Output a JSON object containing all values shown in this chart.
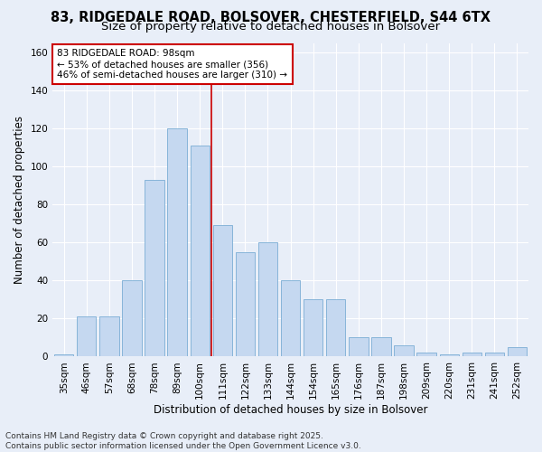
{
  "title_line1": "83, RIDGEDALE ROAD, BOLSOVER, CHESTERFIELD, S44 6TX",
  "title_line2": "Size of property relative to detached houses in Bolsover",
  "xlabel": "Distribution of detached houses by size in Bolsover",
  "ylabel": "Number of detached properties",
  "categories": [
    "35sqm",
    "46sqm",
    "57sqm",
    "68sqm",
    "78sqm",
    "89sqm",
    "100sqm",
    "111sqm",
    "122sqm",
    "133sqm",
    "144sqm",
    "154sqm",
    "165sqm",
    "176sqm",
    "187sqm",
    "198sqm",
    "209sqm",
    "220sqm",
    "231sqm",
    "241sqm",
    "252sqm"
  ],
  "values": [
    1,
    21,
    21,
    40,
    93,
    120,
    111,
    69,
    55,
    60,
    40,
    30,
    30,
    10,
    10,
    6,
    2,
    1,
    2,
    2,
    5
  ],
  "bar_color": "#c5d8f0",
  "bar_edge_color": "#7aadd4",
  "vline_color": "#cc0000",
  "annotation_text": "83 RIDGEDALE ROAD: 98sqm\n← 53% of detached houses are smaller (356)\n46% of semi-detached houses are larger (310) →",
  "annotation_box_color": "#ffffff",
  "annotation_box_edge": "#cc0000",
  "ylim": [
    0,
    165
  ],
  "yticks": [
    0,
    20,
    40,
    60,
    80,
    100,
    120,
    140,
    160
  ],
  "background_color": "#e8eef8",
  "footer_text": "Contains HM Land Registry data © Crown copyright and database right 2025.\nContains public sector information licensed under the Open Government Licence v3.0.",
  "title_fontsize": 10.5,
  "subtitle_fontsize": 9.5,
  "axis_label_fontsize": 8.5,
  "tick_fontsize": 7.5,
  "annotation_fontsize": 7.5,
  "footer_fontsize": 6.5
}
